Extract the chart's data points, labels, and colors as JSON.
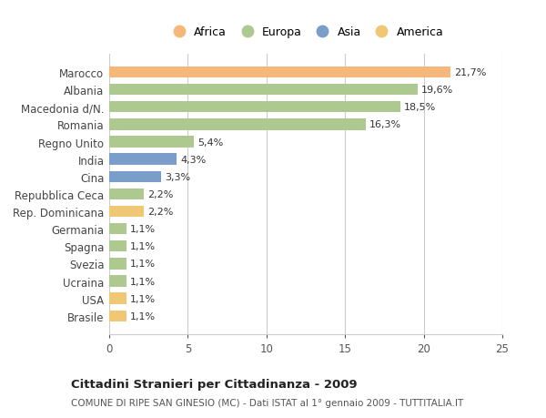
{
  "categories": [
    "Brasile",
    "USA",
    "Ucraina",
    "Svezia",
    "Spagna",
    "Germania",
    "Rep. Dominicana",
    "Repubblica Ceca",
    "Cina",
    "India",
    "Regno Unito",
    "Romania",
    "Macedonia d/N.",
    "Albania",
    "Marocco"
  ],
  "values": [
    1.1,
    1.1,
    1.1,
    1.1,
    1.1,
    1.1,
    2.2,
    2.2,
    3.3,
    4.3,
    5.4,
    16.3,
    18.5,
    19.6,
    21.7
  ],
  "colors": [
    "#f0c875",
    "#f0c875",
    "#adc990",
    "#adc990",
    "#adc990",
    "#adc990",
    "#f0c875",
    "#adc990",
    "#7b9dc9",
    "#7b9dc9",
    "#adc990",
    "#adc990",
    "#adc990",
    "#adc990",
    "#f5b87a"
  ],
  "labels": [
    "1,1%",
    "1,1%",
    "1,1%",
    "1,1%",
    "1,1%",
    "1,1%",
    "2,2%",
    "2,2%",
    "3,3%",
    "4,3%",
    "5,4%",
    "16,3%",
    "18,5%",
    "19,6%",
    "21,7%"
  ],
  "legend_labels": [
    "Africa",
    "Europa",
    "Asia",
    "America"
  ],
  "legend_colors": [
    "#f5b87a",
    "#adc990",
    "#7b9dc9",
    "#f0c875"
  ],
  "title": "Cittadini Stranieri per Cittadinanza - 2009",
  "subtitle": "COMUNE DI RIPE SAN GINESIO (MC) - Dati ISTAT al 1° gennaio 2009 - TUTTITALIA.IT",
  "xlim": [
    0,
    25
  ],
  "xticks": [
    0,
    5,
    10,
    15,
    20,
    25
  ],
  "background_color": "#ffffff",
  "grid_color": "#cccccc"
}
